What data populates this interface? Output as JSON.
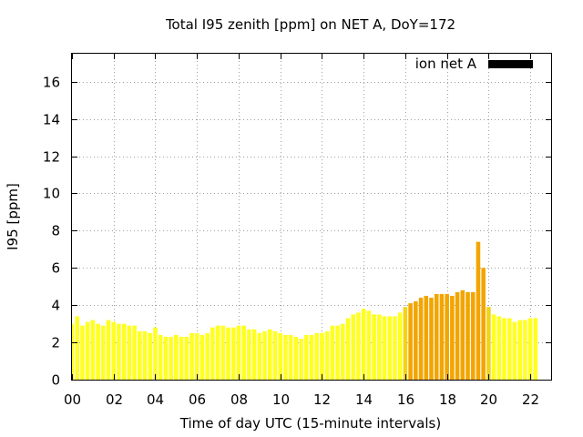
{
  "chart_data": {
    "type": "bar",
    "title": "Total I95 zenith [ppm] on NET A, DoY=172",
    "xlabel": "Time of day UTC (15-minute intervals)",
    "ylabel": "I95 [ppm]",
    "xlim": [
      0,
      23
    ],
    "ylim": [
      0,
      17.5
    ],
    "x_ticks": [
      "00",
      "02",
      "04",
      "06",
      "08",
      "10",
      "12",
      "14",
      "16",
      "18",
      "20",
      "22"
    ],
    "y_ticks": [
      "0",
      "2",
      "4",
      "6",
      "8",
      "10",
      "12",
      "14",
      "16"
    ],
    "grid": true,
    "legend": {
      "label": "ion net A",
      "color": "#000000",
      "position": "top-right"
    },
    "bar_color_normal": "#ffff22",
    "bar_color_elevated": "#f2a500",
    "bar_color_transition": "#f2d318",
    "elevated_threshold": 4.0,
    "series": [
      {
        "values": [
          3.0,
          3.4,
          2.9,
          3.1,
          3.2,
          3.0,
          2.9,
          3.2,
          3.1,
          3.0,
          3.0,
          2.9,
          2.9,
          2.6,
          2.6,
          2.5,
          2.8,
          2.4,
          2.3,
          2.3,
          2.4,
          2.3,
          2.3,
          2.5,
          2.5,
          2.4,
          2.5,
          2.8,
          2.9,
          2.9,
          2.8,
          2.8,
          2.9,
          2.9,
          2.7,
          2.7,
          2.5,
          2.6,
          2.7,
          2.6,
          2.5,
          2.4,
          2.4,
          2.3,
          2.2,
          2.4,
          2.4,
          2.5,
          2.5,
          2.6,
          2.9,
          2.9,
          3.0,
          3.3,
          3.5,
          3.6,
          3.8,
          3.7,
          3.5,
          3.5,
          3.4,
          3.4,
          3.4,
          3.6,
          3.9,
          4.1,
          4.2,
          4.4,
          4.5,
          4.4,
          4.6,
          4.6,
          4.6,
          4.5,
          4.7,
          4.8,
          4.7,
          4.7,
          7.4,
          6.0,
          3.9,
          3.5,
          3.4,
          3.3,
          3.3,
          3.1,
          3.2,
          3.2,
          3.3,
          3.3
        ]
      }
    ]
  }
}
